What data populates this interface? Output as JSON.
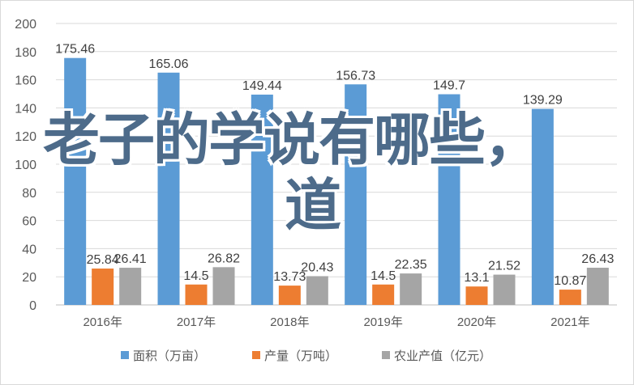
{
  "chart_data": {
    "type": "bar",
    "title": "",
    "xlabel": "",
    "ylabel": "",
    "ylim": [
      0,
      200
    ],
    "yticks": [
      0,
      20,
      40,
      60,
      80,
      100,
      120,
      140,
      160,
      180,
      200
    ],
    "grid": true,
    "legend_position": "bottom",
    "categories": [
      "2016年",
      "2017年",
      "2018年",
      "2019年",
      "2020年",
      "2021年"
    ],
    "series": [
      {
        "name": "面积（万亩）",
        "color": "#5b9bd5",
        "values": [
          175.46,
          165.06,
          149.44,
          156.73,
          149.7,
          139.29
        ]
      },
      {
        "name": "产量（万吨）",
        "color": "#ed7d31",
        "values": [
          25.84,
          14.5,
          13.73,
          14.5,
          13.1,
          10.87
        ]
      },
      {
        "name": "农业产值（亿元）",
        "color": "#a5a5a5",
        "values": [
          26.41,
          26.82,
          20.43,
          22.35,
          21.52,
          26.43
        ]
      }
    ]
  },
  "overlay": {
    "line1": "老子的学说有哪些，",
    "line2": "道"
  }
}
